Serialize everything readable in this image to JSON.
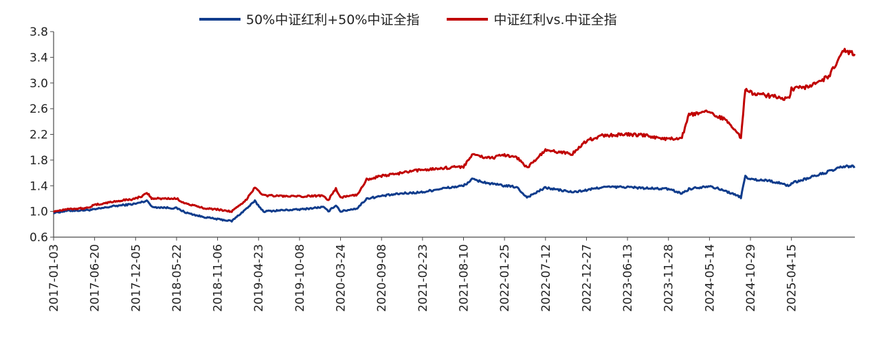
{
  "colors": {
    "blue": "#0f3c8c",
    "red": "#c00000",
    "axis": "#4a4a4a",
    "text": "#222222"
  },
  "chart_data": {
    "type": "line",
    "title": "",
    "xlabel": "",
    "ylabel": "",
    "ylim": [
      0.6,
      3.8
    ],
    "yticks": [
      "0.6",
      "1.0",
      "1.4",
      "1.8",
      "2.2",
      "2.6",
      "3.0",
      "3.4",
      "3.8"
    ],
    "grid": false,
    "legend_position": "top",
    "x_tick_labels": [
      "2017-01-03",
      "2017-06-20",
      "2017-12-05",
      "2018-05-22",
      "2018-11-06",
      "2019-04-23",
      "2019-10-08",
      "2020-03-24",
      "2020-09-08",
      "2021-02-23",
      "2021-08-10",
      "2022-01-25",
      "2022-07-12",
      "2022-12-27",
      "2023-06-13",
      "2023-11-28",
      "2024-05-14",
      "2024-10-29",
      "2025-04-15"
    ],
    "x_range": [
      "2017-01-03",
      "2025-12-31"
    ],
    "series": [
      {
        "name": "50%中证红利+50%中证全指",
        "color": "#0f3c8c",
        "points": [
          [
            "2017-01-03",
            0.98
          ],
          [
            "2017-03-01",
            1.01
          ],
          [
            "2017-05-15",
            1.02
          ],
          [
            "2017-06-20",
            1.03
          ],
          [
            "2017-09-01",
            1.08
          ],
          [
            "2017-12-05",
            1.12
          ],
          [
            "2018-01-24",
            1.17
          ],
          [
            "2018-02-09",
            1.07
          ],
          [
            "2018-05-22",
            1.05
          ],
          [
            "2018-07-01",
            0.98
          ],
          [
            "2018-09-01",
            0.92
          ],
          [
            "2018-11-06",
            0.88
          ],
          [
            "2019-01-03",
            0.85
          ],
          [
            "2019-02-25",
            1.02
          ],
          [
            "2019-04-08",
            1.16
          ],
          [
            "2019-05-13",
            1.0
          ],
          [
            "2019-08-01",
            1.02
          ],
          [
            "2019-10-08",
            1.03
          ],
          [
            "2020-01-13",
            1.07
          ],
          [
            "2020-02-03",
            1.0
          ],
          [
            "2020-03-05",
            1.1
          ],
          [
            "2020-03-24",
            1.0
          ],
          [
            "2020-06-01",
            1.05
          ],
          [
            "2020-07-09",
            1.2
          ],
          [
            "2020-09-08",
            1.24
          ],
          [
            "2020-12-01",
            1.28
          ],
          [
            "2021-02-23",
            1.3
          ],
          [
            "2021-05-01",
            1.35
          ],
          [
            "2021-08-10",
            1.4
          ],
          [
            "2021-09-14",
            1.5
          ],
          [
            "2021-12-01",
            1.43
          ],
          [
            "2022-01-25",
            1.4
          ],
          [
            "2022-03-15",
            1.38
          ],
          [
            "2022-04-27",
            1.22
          ],
          [
            "2022-07-12",
            1.37
          ],
          [
            "2022-10-31",
            1.3
          ],
          [
            "2022-12-27",
            1.33
          ],
          [
            "2023-03-01",
            1.38
          ],
          [
            "2023-06-13",
            1.38
          ],
          [
            "2023-09-01",
            1.36
          ],
          [
            "2023-11-28",
            1.35
          ],
          [
            "2024-01-22",
            1.28
          ],
          [
            "2024-02-20",
            1.35
          ],
          [
            "2024-05-14",
            1.4
          ],
          [
            "2024-08-01",
            1.3
          ],
          [
            "2024-09-20",
            1.22
          ],
          [
            "2024-10-08",
            1.55
          ],
          [
            "2024-10-29",
            1.5
          ],
          [
            "2025-01-15",
            1.48
          ],
          [
            "2025-04-07",
            1.4
          ],
          [
            "2025-04-15",
            1.44
          ],
          [
            "2025-07-01",
            1.53
          ],
          [
            "2025-09-15",
            1.62
          ],
          [
            "2025-11-15",
            1.7
          ],
          [
            "2025-12-31",
            1.7
          ]
        ]
      },
      {
        "name": "中证红利vs.中证全指",
        "color": "#c00000",
        "points": [
          [
            "2017-01-03",
            1.0
          ],
          [
            "2017-03-01",
            1.04
          ],
          [
            "2017-05-15",
            1.05
          ],
          [
            "2017-06-20",
            1.1
          ],
          [
            "2017-09-01",
            1.15
          ],
          [
            "2017-12-05",
            1.2
          ],
          [
            "2018-01-24",
            1.28
          ],
          [
            "2018-02-09",
            1.2
          ],
          [
            "2018-05-22",
            1.2
          ],
          [
            "2018-07-01",
            1.12
          ],
          [
            "2018-09-01",
            1.06
          ],
          [
            "2018-11-06",
            1.03
          ],
          [
            "2019-01-03",
            1.0
          ],
          [
            "2019-02-25",
            1.15
          ],
          [
            "2019-04-08",
            1.38
          ],
          [
            "2019-05-13",
            1.25
          ],
          [
            "2019-08-01",
            1.24
          ],
          [
            "2019-10-08",
            1.23
          ],
          [
            "2020-01-13",
            1.25
          ],
          [
            "2020-02-03",
            1.18
          ],
          [
            "2020-03-05",
            1.35
          ],
          [
            "2020-03-24",
            1.22
          ],
          [
            "2020-06-01",
            1.26
          ],
          [
            "2020-07-09",
            1.5
          ],
          [
            "2020-09-08",
            1.55
          ],
          [
            "2020-12-01",
            1.6
          ],
          [
            "2021-02-23",
            1.65
          ],
          [
            "2021-05-01",
            1.67
          ],
          [
            "2021-08-10",
            1.7
          ],
          [
            "2021-09-14",
            1.88
          ],
          [
            "2021-12-01",
            1.83
          ],
          [
            "2022-01-25",
            1.88
          ],
          [
            "2022-03-15",
            1.85
          ],
          [
            "2022-04-27",
            1.68
          ],
          [
            "2022-07-12",
            1.95
          ],
          [
            "2022-10-31",
            1.9
          ],
          [
            "2022-12-27",
            2.1
          ],
          [
            "2023-03-01",
            2.18
          ],
          [
            "2023-06-13",
            2.2
          ],
          [
            "2023-09-01",
            2.18
          ],
          [
            "2023-11-28",
            2.12
          ],
          [
            "2024-01-22",
            2.15
          ],
          [
            "2024-02-20",
            2.5
          ],
          [
            "2024-05-14",
            2.55
          ],
          [
            "2024-08-01",
            2.4
          ],
          [
            "2024-09-20",
            2.15
          ],
          [
            "2024-10-08",
            2.9
          ],
          [
            "2024-10-29",
            2.85
          ],
          [
            "2025-01-15",
            2.8
          ],
          [
            "2025-04-07",
            2.75
          ],
          [
            "2025-04-15",
            2.9
          ],
          [
            "2025-07-01",
            2.95
          ],
          [
            "2025-09-15",
            3.1
          ],
          [
            "2025-11-15",
            3.5
          ],
          [
            "2025-12-31",
            3.45
          ]
        ]
      }
    ]
  }
}
